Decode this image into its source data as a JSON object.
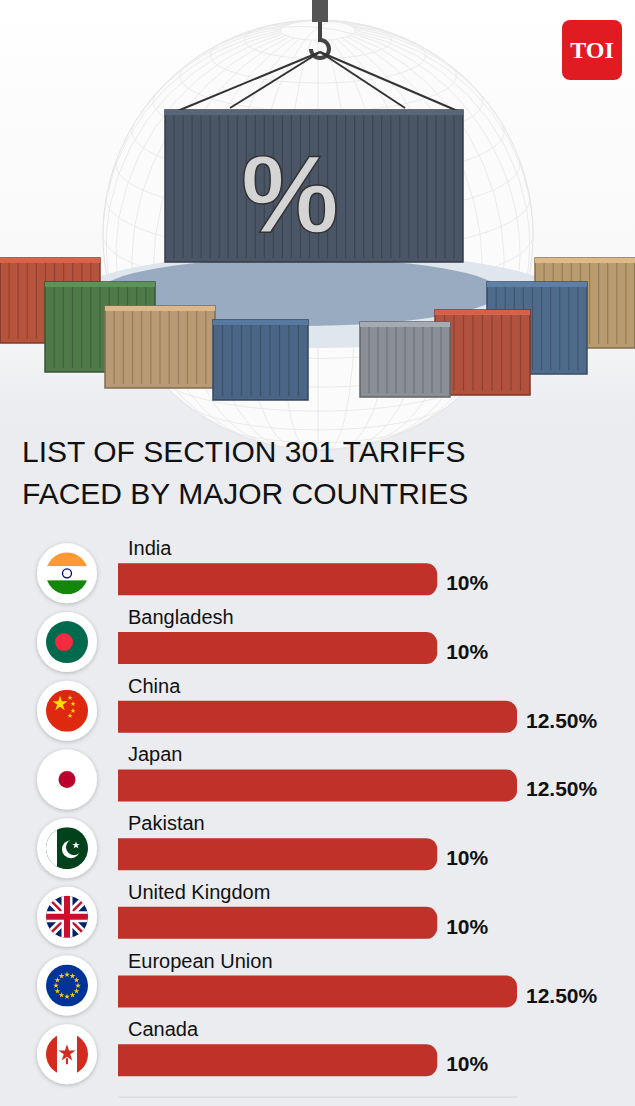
{
  "chart_data": {
    "type": "bar",
    "orientation": "horizontal",
    "title": "LIST OF SECTION 301 TARIFFS FACED BY MAJOR COUNTRIES",
    "annotations": [
      "TOI",
      "%"
    ],
    "categories": [
      "India",
      "Bangladesh",
      "China",
      "Japan",
      "Pakistan",
      "United Kingdom",
      "European Union",
      "Canada"
    ],
    "values": [
      10,
      10,
      12.5,
      12.5,
      10,
      10,
      12.5,
      10
    ],
    "value_labels": [
      "10%",
      "10%",
      "12.50%",
      "12.50%",
      "10%",
      "10%",
      "12.50%",
      "10%"
    ],
    "color": "#bf3129",
    "xlim": [
      0,
      12.5
    ],
    "data_labels": true,
    "tick_labels": false
  }
}
